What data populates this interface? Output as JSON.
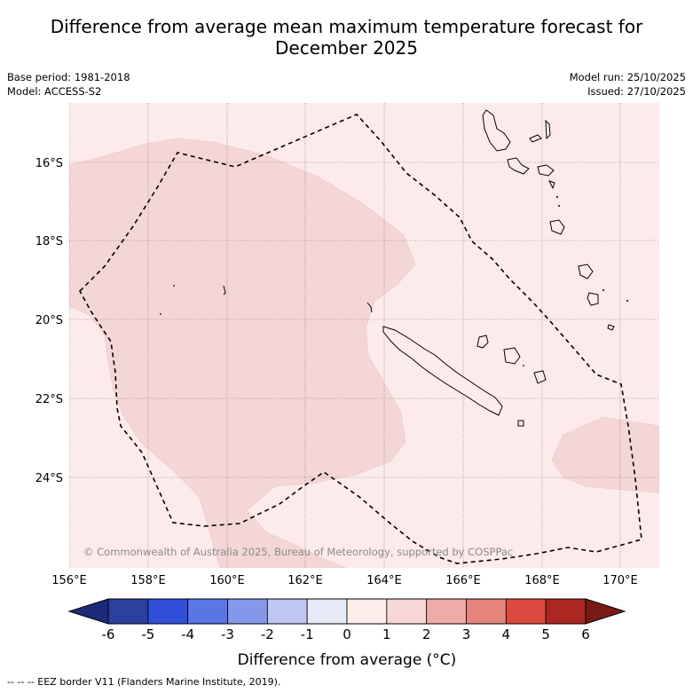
{
  "title_line1": "Difference from average mean maximum temperature forecast for",
  "title_line2": "December 2025",
  "base_period": "Base period: 1981-2018",
  "model": "Model: ACCESS-S2",
  "model_run": "Model run: 25/10/2025",
  "issued": "Issued: 27/10/2025",
  "copyright": "© Commonwealth of Australia 2025, Bureau of Meteorology, supported by COSPPac",
  "lat_labels": [
    "16°S",
    "18°S",
    "20°S",
    "22°S",
    "24°S"
  ],
  "lon_labels": [
    "156°E",
    "158°E",
    "160°E",
    "162°E",
    "164°E",
    "166°E",
    "168°E",
    "170°E"
  ],
  "colorbar": {
    "ticks": [
      "-6",
      "-5",
      "-4",
      "-3",
      "-2",
      "-1",
      "0",
      "1",
      "2",
      "3",
      "4",
      "5",
      "6"
    ],
    "colors": [
      "#2a3f9e",
      "#2f4fd9",
      "#5a75e6",
      "#8597eb",
      "#bfc6f4",
      "#e8eaf8",
      "#fdecea",
      "#f6d7d6",
      "#f0aba7",
      "#e6847e",
      "#dc4a40",
      "#ad2722"
    ],
    "low_extend_color": "#1b2b7a",
    "high_extend_color": "#7a1a14",
    "label": "Difference from average (°C)"
  },
  "legend_footer": "-- -- -- EEZ border V11 (Flanders Marine Institute, 2019).",
  "map_colors": {
    "background": "#fcebea",
    "anomaly_1_to_2": "#f5d6d6"
  }
}
